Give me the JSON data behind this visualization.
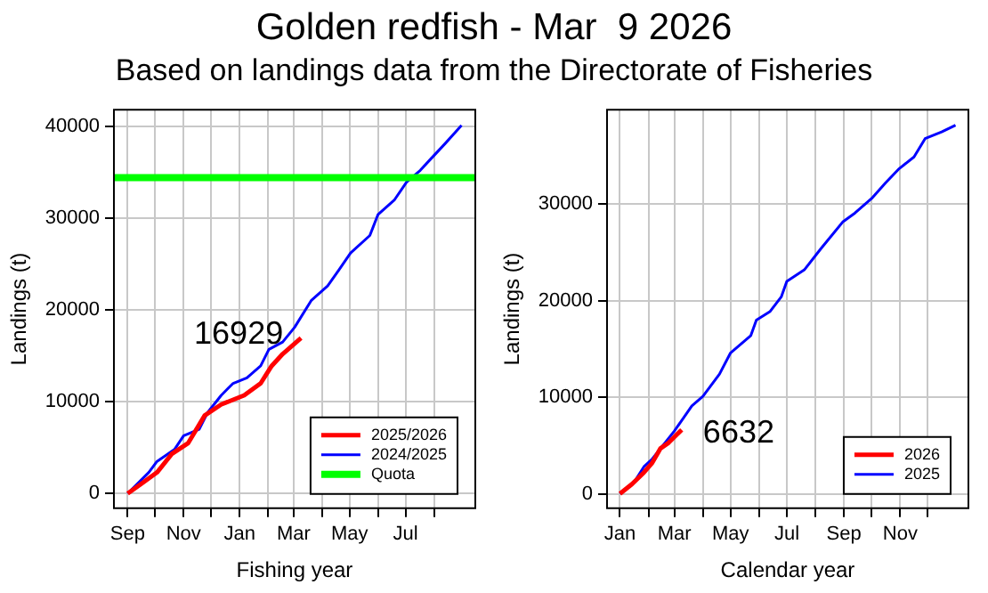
{
  "chart_data": [
    {
      "type": "line",
      "title": "Golden redfish - Mar  9 2026",
      "subtitle": "Based on landings data from the Directorate of Fisheries",
      "xlabel": "Fishing year",
      "ylabel": "Landings (t)",
      "xlim": [
        "2025-08-17",
        "2026-09-15"
      ],
      "ylim": [
        -1600,
        41800
      ],
      "xticks": [
        {
          "value": "2025-09-01",
          "label": "Sep"
        },
        {
          "value": "2025-10-01",
          "label": null
        },
        {
          "value": "2025-11-01",
          "label": "Nov"
        },
        {
          "value": "2025-12-01",
          "label": null
        },
        {
          "value": "2026-01-01",
          "label": "Jan"
        },
        {
          "value": "2026-02-01",
          "label": null
        },
        {
          "value": "2026-03-01",
          "label": "Mar"
        },
        {
          "value": "2026-04-01",
          "label": null
        },
        {
          "value": "2026-05-01",
          "label": "May"
        },
        {
          "value": "2026-06-01",
          "label": null
        },
        {
          "value": "2026-07-01",
          "label": "Jul"
        },
        {
          "value": "2026-08-01",
          "label": null
        }
      ],
      "yticks": [
        0,
        10000,
        20000,
        30000,
        40000
      ],
      "grid": true,
      "legend": "bottom right",
      "line_style": "solid",
      "marker": "none",
      "series": [
        {
          "name": "2025/2026",
          "color": "#ff0000",
          "x": [
            "2025-09-01",
            "2025-09-15",
            "2025-10-03",
            "2025-10-19",
            "2025-11-06",
            "2025-11-24",
            "2025-12-12",
            "2026-01-06",
            "2026-01-24",
            "2026-02-05",
            "2026-02-17",
            "2026-03-09"
          ],
          "values": [
            0,
            1000,
            2300,
            4300,
            5500,
            8500,
            9700,
            10700,
            12000,
            13900,
            15200,
            16929
          ]
        },
        {
          "name": "2024/2025",
          "color": "#0000ff",
          "x": [
            "2025-09-01",
            "2025-09-24",
            "2025-10-03",
            "2025-10-22",
            "2025-11-01",
            "2025-11-18",
            "2025-11-27",
            "2025-12-12",
            "2025-12-25",
            "2026-01-09",
            "2026-01-24",
            "2026-02-02",
            "2026-02-17",
            "2026-03-02",
            "2026-03-20",
            "2026-04-07",
            "2026-04-19",
            "2026-05-02",
            "2026-05-23",
            "2026-06-01",
            "2026-06-19",
            "2026-07-02",
            "2026-07-17",
            "2026-07-29",
            "2026-08-13",
            "2026-08-31"
          ],
          "values": [
            0,
            2300,
            3500,
            4800,
            6300,
            7000,
            8800,
            10700,
            12000,
            12600,
            13900,
            15700,
            16500,
            18100,
            21000,
            22600,
            24300,
            26200,
            28100,
            30400,
            32000,
            33900,
            35200,
            36500,
            38100,
            40100
          ]
        }
      ],
      "ref_lines": [
        {
          "axis": "y",
          "value": 34400,
          "label": "Quota",
          "color": "#00ff00"
        }
      ],
      "annotations": [
        {
          "text": "16929",
          "x": "2026-03-09",
          "y": 16929
        }
      ]
    },
    {
      "type": "line",
      "xlabel": "Calendar year",
      "ylabel": "Landings (t)",
      "xlim": [
        "2025-12-18",
        "2027-01-14"
      ],
      "ylim": [
        -1500,
        39800
      ],
      "xticks": [
        {
          "value": "2026-01-01",
          "label": "Jan"
        },
        {
          "value": "2026-02-01",
          "label": null
        },
        {
          "value": "2026-03-01",
          "label": "Mar"
        },
        {
          "value": "2026-04-01",
          "label": null
        },
        {
          "value": "2026-05-01",
          "label": "May"
        },
        {
          "value": "2026-06-01",
          "label": null
        },
        {
          "value": "2026-07-01",
          "label": "Jul"
        },
        {
          "value": "2026-08-01",
          "label": null
        },
        {
          "value": "2026-09-01",
          "label": "Sep"
        },
        {
          "value": "2026-10-01",
          "label": null
        },
        {
          "value": "2026-11-01",
          "label": "Nov"
        },
        {
          "value": "2026-12-01",
          "label": null
        }
      ],
      "yticks": [
        0,
        10000,
        20000,
        30000
      ],
      "grid": true,
      "legend": "bottom right",
      "line_style": "solid",
      "marker": "none",
      "series": [
        {
          "name": "2026",
          "color": "#ff0000",
          "x": [
            "2026-01-01",
            "2026-01-14",
            "2026-01-27",
            "2026-02-05",
            "2026-02-14",
            "2026-02-23",
            "2026-03-09"
          ],
          "values": [
            0,
            1000,
            2200,
            3200,
            4700,
            5300,
            6632
          ]
        },
        {
          "name": "2025",
          "color": "#0000ff",
          "x": [
            "2026-01-01",
            "2026-01-17",
            "2026-01-27",
            "2026-02-05",
            "2026-03-01",
            "2026-03-20",
            "2026-04-01",
            "2026-04-19",
            "2026-05-01",
            "2026-05-23",
            "2026-05-29",
            "2026-06-13",
            "2026-06-25",
            "2026-07-01",
            "2026-07-20",
            "2026-08-07",
            "2026-08-31",
            "2026-09-13",
            "2026-10-01",
            "2026-10-16",
            "2026-10-31",
            "2026-11-16",
            "2026-11-28",
            "2026-12-16",
            "2026-12-31"
          ],
          "values": [
            0,
            1300,
            2800,
            3600,
            6500,
            9100,
            10100,
            12400,
            14600,
            16400,
            18000,
            18900,
            20400,
            22000,
            23200,
            25400,
            28200,
            29100,
            30600,
            32200,
            33700,
            34900,
            36800,
            37500,
            38200
          ]
        }
      ],
      "annotations": [
        {
          "text": "6632",
          "x": "2026-03-09",
          "y": 6632
        }
      ]
    }
  ]
}
